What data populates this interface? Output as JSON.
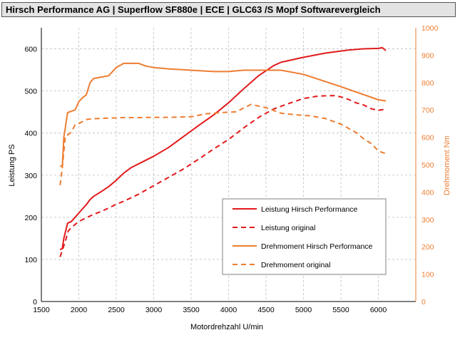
{
  "title": "Hirsch Performance AG   |   Superflow SF880e   |   ECE   |   GLC63 /S Mopf Softwarevergleich",
  "colors": {
    "red": "#E31A1C",
    "orange": "#ED7D31",
    "grid": "#bfbfbf"
  },
  "chart_data": {
    "type": "line",
    "title": "Hirsch Performance AG   |   Superflow SF880e   |   ECE   |   GLC63 /S Mopf Softwarevergleich",
    "xlabel": "Motordrehzahl U/min",
    "ylabel": "Leistung PS",
    "y2label": "Drehmoment Nm",
    "xlim": [
      1500,
      6500
    ],
    "ylim": [
      0,
      650
    ],
    "y2lim": [
      0,
      1000
    ],
    "x_ticks": [
      1500,
      2000,
      2500,
      3000,
      3500,
      4000,
      4500,
      5000,
      5500,
      6000
    ],
    "y_ticks": [
      0,
      100,
      200,
      300,
      400,
      500,
      600
    ],
    "y2_ticks": [
      0,
      100,
      200,
      300,
      400,
      500,
      600,
      700,
      800,
      900,
      1000
    ],
    "grid": "dashed",
    "legend_position": "bottom-right",
    "series": [
      {
        "name": "Leistung Hirsch Performance",
        "axis": "left",
        "color": "#E31A1C",
        "dash": false,
        "x": [
          1750,
          1780,
          1800,
          1850,
          1900,
          1950,
          2000,
          2100,
          2150,
          2200,
          2300,
          2400,
          2500,
          2600,
          2700,
          2800,
          3000,
          3200,
          3400,
          3600,
          3800,
          4000,
          4200,
          4400,
          4600,
          4700,
          5000,
          5300,
          5600,
          5800,
          6000,
          6050,
          6100
        ],
        "y": [
          123,
          126,
          150,
          186,
          190,
          200,
          210,
          230,
          242,
          250,
          261,
          273,
          288,
          305,
          318,
          327,
          345,
          366,
          392,
          418,
          443,
          472,
          505,
          536,
          560,
          568,
          580,
          590,
          597,
          600,
          601,
          603,
          596
        ]
      },
      {
        "name": "Leistung original",
        "axis": "left",
        "color": "#E31A1C",
        "dash": true,
        "x": [
          1750,
          1780,
          1820,
          1860,
          1900,
          1950,
          2000,
          2100,
          2200,
          2300,
          2400,
          2500,
          2600,
          2800,
          3000,
          3200,
          3400,
          3600,
          3800,
          4000,
          4200,
          4400,
          4600,
          4800,
          5000,
          5200,
          5400,
          5500,
          5600,
          5700,
          5800,
          5900,
          6000,
          6100
        ],
        "y": [
          106,
          122,
          143,
          168,
          175,
          183,
          190,
          199,
          207,
          214,
          222,
          231,
          238,
          255,
          275,
          295,
          315,
          338,
          362,
          385,
          412,
          437,
          457,
          470,
          482,
          488,
          489,
          486,
          480,
          472,
          467,
          458,
          454,
          457
        ]
      },
      {
        "name": "Drehmoment Hirsch Performance",
        "axis": "right",
        "color": "#ED7D31",
        "dash": false,
        "x": [
          1750,
          1780,
          1800,
          1850,
          1900,
          1950,
          2000,
          2050,
          2100,
          2150,
          2200,
          2300,
          2400,
          2500,
          2600,
          2800,
          2900,
          3000,
          3200,
          3500,
          3800,
          4000,
          4200,
          4500,
          4700,
          5000,
          5500,
          6000,
          6100
        ],
        "y": [
          495,
          495,
          600,
          690,
          695,
          700,
          730,
          745,
          755,
          800,
          815,
          820,
          825,
          855,
          870,
          870,
          860,
          855,
          850,
          845,
          840,
          840,
          845,
          845,
          845,
          830,
          785,
          737,
          733
        ]
      },
      {
        "name": "Drehmoment original",
        "axis": "right",
        "color": "#ED7D31",
        "dash": true,
        "x": [
          1750,
          1780,
          1820,
          1860,
          1900,
          1950,
          2000,
          2100,
          2200,
          2400,
          2600,
          2800,
          3000,
          3200,
          3500,
          3700,
          3900,
          4100,
          4300,
          4500,
          4700,
          4900,
          5100,
          5300,
          5500,
          5700,
          5800,
          5900,
          6000,
          6100
        ],
        "y": [
          425,
          490,
          605,
          610,
          620,
          645,
          650,
          665,
          668,
          670,
          672,
          672,
          673,
          673,
          675,
          686,
          690,
          693,
          720,
          708,
          688,
          682,
          678,
          668,
          648,
          618,
          595,
          578,
          550,
          540
        ]
      }
    ]
  }
}
